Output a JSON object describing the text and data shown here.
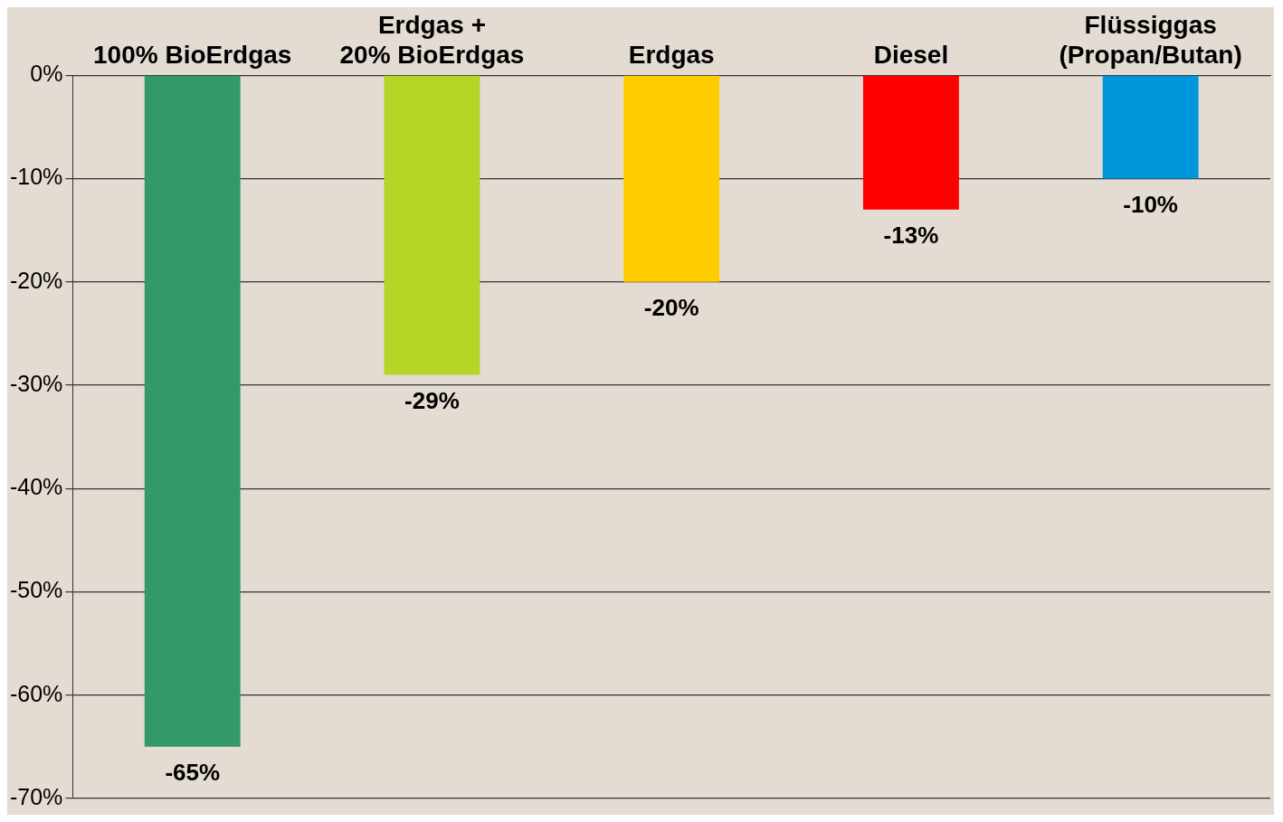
{
  "chart_data": {
    "type": "bar",
    "categories": [
      "100% BioErdgas",
      "Erdgas +\n20% BioErdgas",
      "Erdgas",
      "Diesel",
      "Flüssiggas\n(Propan/Butan)"
    ],
    "values": [
      -65,
      -29,
      -20,
      -13,
      -10
    ],
    "colors": [
      "#339966",
      "#b5d624",
      "#ffcc00",
      "#ff0000",
      "#0096dc"
    ],
    "value_labels": [
      "-65%",
      "-29%",
      "-20%",
      "-13%",
      "-10%"
    ],
    "ylim": [
      -70,
      0
    ],
    "yticks": [
      {
        "value": 0,
        "label": "0%"
      },
      {
        "value": -10,
        "label": "-10%"
      },
      {
        "value": -20,
        "label": "-20%"
      },
      {
        "value": -30,
        "label": "-30%"
      },
      {
        "value": -40,
        "label": "-40%"
      },
      {
        "value": -50,
        "label": "-50%"
      },
      {
        "value": -60,
        "label": "-60%"
      },
      {
        "value": -70,
        "label": "-70%"
      }
    ],
    "grid": "y",
    "legend": false
  }
}
